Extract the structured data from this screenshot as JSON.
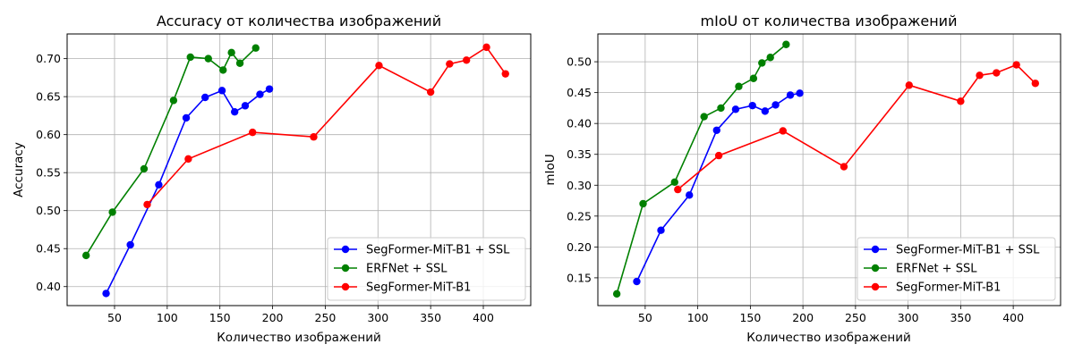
{
  "chart_data": [
    {
      "type": "line",
      "title": "Accuracy от количества изображений",
      "xlabel": "Количество изображений",
      "ylabel": "Accuracy",
      "xlim": [
        5,
        445
      ],
      "ylim": [
        0.375,
        0.7325
      ],
      "xticks": [
        50,
        100,
        150,
        200,
        250,
        300,
        350,
        400
      ],
      "yticks": [
        0.4,
        0.45,
        0.5,
        0.55,
        0.6,
        0.65,
        0.7
      ],
      "tick_decimals": 2,
      "grid": true,
      "legend": "bottom-right",
      "series": [
        {
          "name": "SegFormer-MiT-B1 + SSL",
          "color": "#0000ff",
          "x": [
            42,
            65,
            92,
            118,
            136,
            152,
            164,
            174,
            188,
            197
          ],
          "y": [
            0.391,
            0.455,
            0.534,
            0.622,
            0.649,
            0.658,
            0.63,
            0.638,
            0.653,
            0.66
          ]
        },
        {
          "name": "ERFNet + SSL",
          "color": "#008000",
          "x": [
            23,
            48,
            78,
            106,
            122,
            139,
            153,
            161,
            169,
            184
          ],
          "y": [
            0.441,
            0.498,
            0.555,
            0.645,
            0.702,
            0.7,
            0.685,
            0.708,
            0.694,
            0.714
          ]
        },
        {
          "name": "SegFormer-MiT-B1",
          "color": "#ff0000",
          "x": [
            81,
            120,
            181,
            239,
            301,
            350,
            368,
            384,
            403,
            421
          ],
          "y": [
            0.508,
            0.568,
            0.603,
            0.597,
            0.691,
            0.656,
            0.693,
            0.698,
            0.715,
            0.68
          ]
        }
      ]
    },
    {
      "type": "line",
      "title": "mIoU от количества изображений",
      "xlabel": "Количество изображений",
      "ylabel": "mIoU",
      "xlim": [
        5,
        445
      ],
      "ylim": [
        0.105,
        0.545
      ],
      "xticks": [
        50,
        100,
        150,
        200,
        250,
        300,
        350,
        400
      ],
      "yticks": [
        0.15,
        0.2,
        0.25,
        0.3,
        0.35,
        0.4,
        0.45,
        0.5
      ],
      "tick_decimals": 2,
      "grid": true,
      "legend": "bottom-right",
      "series": [
        {
          "name": "SegFormer-MiT-B1 + SSL",
          "color": "#0000ff",
          "x": [
            42,
            65,
            92,
            118,
            136,
            152,
            164,
            174,
            188,
            197
          ],
          "y": [
            0.144,
            0.227,
            0.284,
            0.389,
            0.423,
            0.429,
            0.42,
            0.43,
            0.446,
            0.449
          ]
        },
        {
          "name": "ERFNet + SSL",
          "color": "#008000",
          "x": [
            23,
            48,
            78,
            106,
            122,
            139,
            153,
            161,
            169,
            184
          ],
          "y": [
            0.124,
            0.27,
            0.305,
            0.411,
            0.425,
            0.46,
            0.473,
            0.498,
            0.507,
            0.528
          ]
        },
        {
          "name": "SegFormer-MiT-B1",
          "color": "#ff0000",
          "x": [
            81,
            120,
            181,
            239,
            301,
            350,
            368,
            384,
            403,
            421
          ],
          "y": [
            0.293,
            0.348,
            0.388,
            0.33,
            0.462,
            0.436,
            0.478,
            0.482,
            0.495,
            0.465
          ]
        }
      ]
    }
  ]
}
